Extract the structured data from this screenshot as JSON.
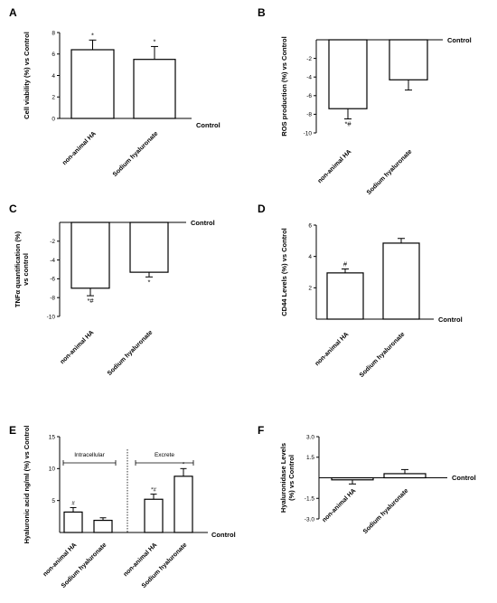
{
  "chart_data": [
    {
      "panel": "A",
      "type": "bar",
      "ylabel": "Cell viability (%) vs Control",
      "baseline_label": "Control",
      "ylim": [
        0,
        8
      ],
      "yticks": [
        0,
        2,
        4,
        6,
        8
      ],
      "categories": [
        "non-animal HA",
        "Sodium hyaluronate"
      ],
      "values": [
        6.4,
        5.5
      ],
      "errors": [
        0.9,
        1.2
      ],
      "annotations": [
        "*",
        "*"
      ]
    },
    {
      "panel": "B",
      "type": "bar",
      "ylabel": "ROS production (%) vs Control",
      "baseline_label": "Control",
      "ylim": [
        -10,
        0
      ],
      "yticks": [
        -2,
        -4,
        -6,
        -8,
        -10
      ],
      "categories": [
        "non-animal HA",
        "Sodium hyaluronate"
      ],
      "values": [
        -7.4,
        -4.3
      ],
      "errors": [
        1.1,
        1.1
      ],
      "annotations": [
        "*#",
        ""
      ]
    },
    {
      "panel": "C",
      "type": "bar",
      "ylabel": "TNFα quantification (%) vs control",
      "baseline_label": "Control",
      "ylim": [
        -10,
        0
      ],
      "yticks": [
        -2,
        -4,
        -6,
        -8,
        -10
      ],
      "categories": [
        "non-animal HA",
        "Sodium hyaluronate"
      ],
      "values": [
        -7.0,
        -5.3
      ],
      "errors": [
        0.8,
        0.5
      ],
      "annotations": [
        "*#",
        "*"
      ]
    },
    {
      "panel": "D",
      "type": "bar",
      "ylabel": "CD44 Levels (%) vs Control",
      "baseline_label": "Control",
      "ylim": [
        0,
        6
      ],
      "yticks": [
        2,
        4,
        6
      ],
      "categories": [
        "non-animal HA",
        "Sodium hyaluronate"
      ],
      "values": [
        2.95,
        4.85
      ],
      "errors": [
        0.25,
        0.3
      ],
      "annotations": [
        "#",
        ""
      ]
    },
    {
      "panel": "E",
      "type": "bar",
      "ylabel": "Hyaluronic acid ng/ml (%) vs Control",
      "baseline_label": "Control",
      "ylim": [
        0,
        15
      ],
      "yticks": [
        5,
        10,
        15
      ],
      "groups": [
        "Intracellular",
        "Excrete"
      ],
      "categories": [
        "non-animal HA",
        "Sodium hyaluronate",
        "non-animal HA",
        "Sodium hyaluronate"
      ],
      "values": [
        3.2,
        1.9,
        5.2,
        8.8
      ],
      "errors": [
        0.7,
        0.4,
        0.8,
        1.2
      ],
      "annotations": [
        "#",
        "",
        "*#",
        "*"
      ]
    },
    {
      "panel": "F",
      "type": "bar",
      "ylabel": "Hyaluronidase Levels (%) vs Control",
      "baseline_label": "Control",
      "ylim": [
        -3.0,
        3.0
      ],
      "yticks": [
        3.0,
        1.5,
        -1.5,
        -3.0
      ],
      "ytick_labels": [
        "3.0",
        "1.5",
        "-1.5",
        "-3.0"
      ],
      "categories": [
        "non-animal HA",
        "Sodium hyaluronate"
      ],
      "values": [
        -0.15,
        0.3
      ],
      "errors": [
        0.3,
        0.3
      ],
      "annotations": [
        "",
        ""
      ]
    }
  ]
}
